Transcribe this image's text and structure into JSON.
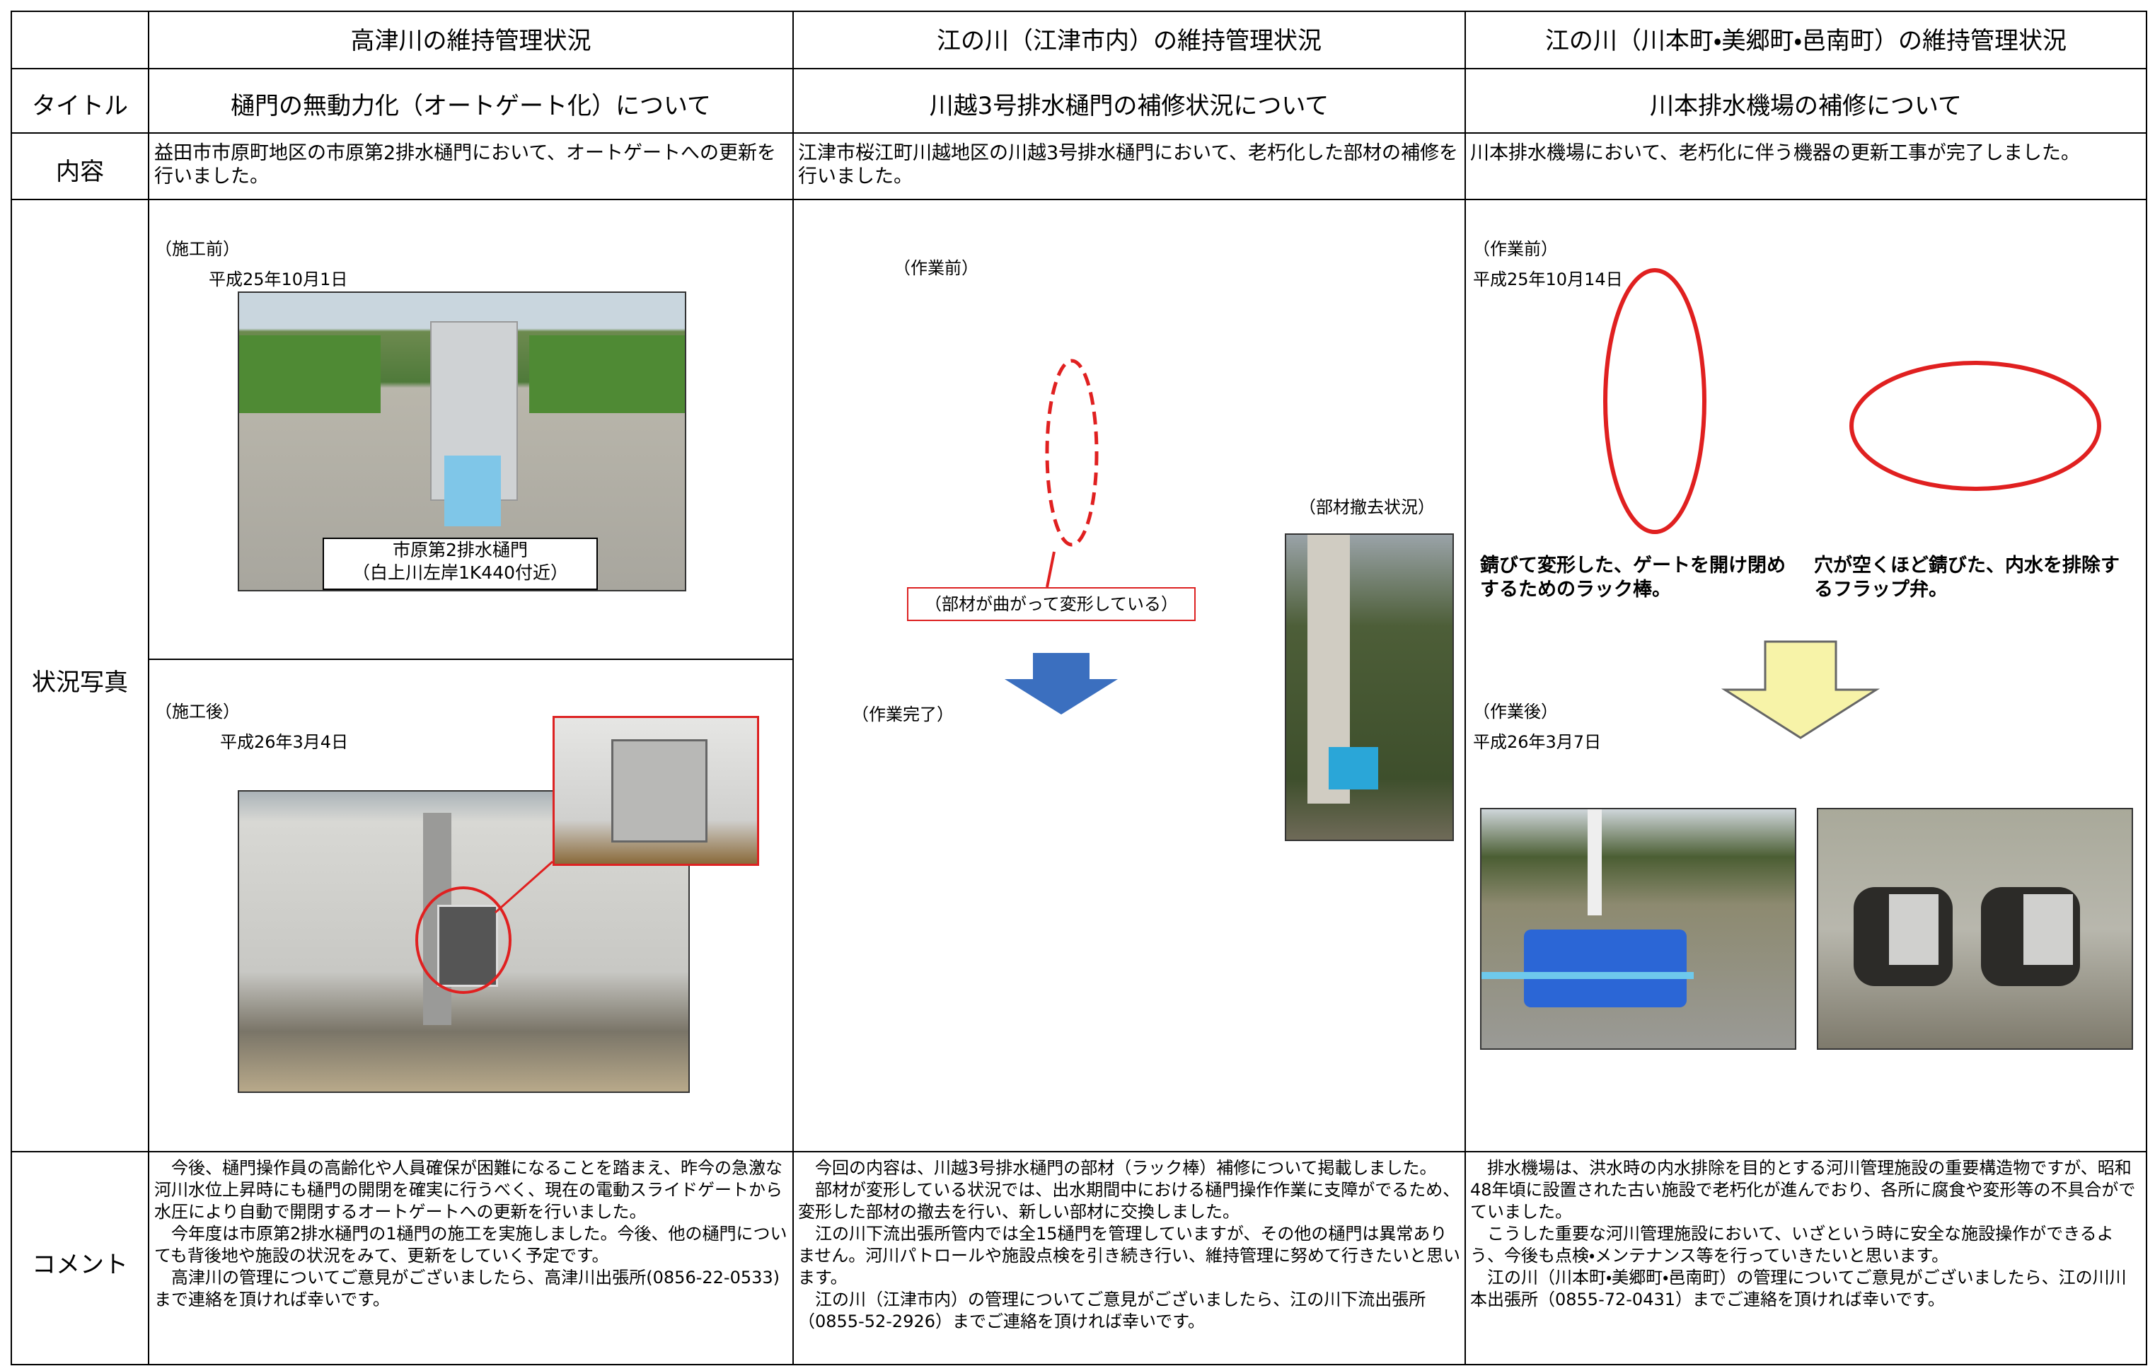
{
  "header": {
    "columns": [
      "高津川の維持管理状況",
      "江の川（江津市内）の維持管理状況",
      "江の川（川本町・美郷町・邑南町）の維持管理状況"
    ]
  },
  "rows": {
    "title": {
      "label": "タイトル",
      "cells": [
        "樋門の無動力化（オートゲート化）について",
        "川越3号排水樋門の補修状況について",
        "川本排水機場の補修について"
      ]
    },
    "content": {
      "label": "内容",
      "cells": [
        "益田市市原町地区の市原第2排水樋門において、オートゲートへの更新を行いました。",
        "江津市桜江町川越地区の川越3号排水樋門において、老朽化した部材の補修を行いました。",
        "川本排水機場において、老朽化に伴う機器の更新工事が完了しました。"
      ]
    },
    "photos": {
      "label": "状況写真"
    },
    "comment": {
      "label": "コメント",
      "cells": [
        [
          "今後、樋門操作員の高齢化や人員確保が困難になることを踏まえ、昨今の急激な河川水位上昇時にも樋門の開閉を確実に行うべく、現在の電動スライドゲートから水圧により自動で開閉するオートゲートへの更新を行いました。",
          "今年度は市原第2排水樋門の1樋門の施工を実施しました。今後、他の樋門についても背後地や施設の状況をみて、更新をしていく予定です。",
          "高津川の管理についてご意見がございましたら、高津川出張所(0856-22-0533)まで連絡を頂ければ幸いです。"
        ],
        [
          "今回の内容は、川越3号排水樋門の部材（ラック棒）補修について掲載しました。",
          "部材が変形している状況では、出水期間中における樋門操作作業に支障がでるため、変形した部材の撤去を行い、新しい部材に交換しました。",
          "江の川下流出張所管内では全15樋門を管理していますが、その他の樋門は異常ありません。河川パトロールや施設点検を引き続き行い、維持管理に努めて行きたいと思います。",
          "江の川（江津市内）の管理についてご意見がございましたら、江の川下流出張所（0855-52-2926）までご連絡を頂ければ幸いです。"
        ],
        [
          "排水機場は、洪水時の内水排除を目的とする河川管理施設の重要構造物ですが、昭和48年頃に設置された古い施設で老朽化が進んでおり、各所に腐食や変形等の不具合がでていました。",
          "こうした重要な河川管理施設において、いざという時に安全な施設操作ができるよう、今後も点検・メンテナンス等を行っていきたいと思います。",
          "江の川（川本町・美郷町・邑南町）の管理についてご意見がございましたら、江の川川本出張所（0855-72-0431）までご連絡を頂ければ幸いです。"
        ]
      ]
    }
  },
  "photos": {
    "col1": {
      "before": "（施工前）",
      "before_date": "平成25年10月1日",
      "gate_name": "市原第2排水樋門",
      "gate_location": "（白上川左岸1K440付近）",
      "after": "（施工後）",
      "after_date": "平成26年3月4日"
    },
    "col2": {
      "before": "（作業前）",
      "deformed": "（部材が曲がって変形している）",
      "removal": "（部材撤去状況）",
      "done": "（作業完了）"
    },
    "col3": {
      "before": "（作業前）",
      "before_date": "平成25年10月14日",
      "rack_caption": "錆びて変形した、ゲートを開け閉めするためのラック棒。",
      "flap_caption": "穴が空くほど錆びた、内水を排除するフラップ弁。",
      "after": "（作業後）",
      "after_date": "平成26年3月7日"
    }
  }
}
